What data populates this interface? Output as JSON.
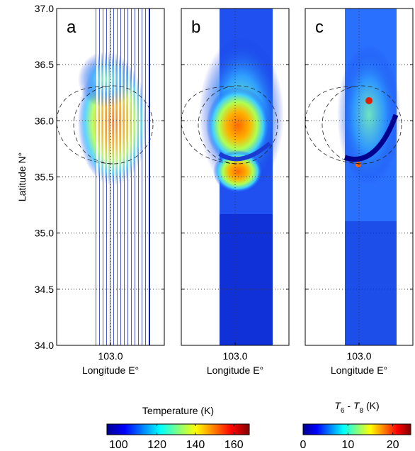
{
  "figure": {
    "panels": [
      {
        "label": "a"
      },
      {
        "label": "b"
      },
      {
        "label": "c"
      }
    ],
    "y_axis": {
      "label": "Latitude N°",
      "ylim": [
        34,
        37
      ],
      "yticks": [
        {
          "value": 34,
          "label": "34.0"
        },
        {
          "value": 34.5,
          "label": "34.5"
        },
        {
          "value": 35,
          "label": "35.0"
        },
        {
          "value": 35.5,
          "label": "35.5"
        },
        {
          "value": 36,
          "label": "36.0"
        },
        {
          "value": 36.5,
          "label": "36.5"
        },
        {
          "value": 37,
          "label": "37.0"
        }
      ]
    },
    "x_axis": {
      "label": "Longitude E°",
      "xlim": [
        102.5,
        103.5
      ],
      "xticks": [
        {
          "value": 103,
          "label": "103.0"
        }
      ]
    },
    "grid": true,
    "colorbars": [
      {
        "label": "Temperature (K)",
        "lim": [
          94,
          168
        ],
        "ticks": [
          100,
          120,
          140,
          160
        ]
      },
      {
        "label_parts": [
          "T",
          "6",
          " - ",
          "T",
          "8",
          " (K)"
        ],
        "lim": [
          0,
          24
        ],
        "ticks": [
          0,
          10,
          20
        ]
      }
    ]
  }
}
